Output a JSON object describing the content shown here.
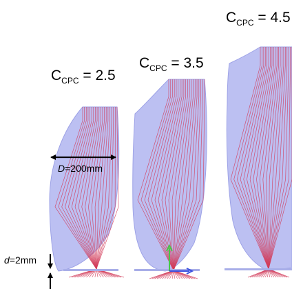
{
  "panels": [
    {
      "id": "cpc-2-5",
      "c_label": "C",
      "c_sub": "CPC",
      "c_value": "= 2.5"
    },
    {
      "id": "cpc-3-5",
      "c_label": "C",
      "c_sub": "CPC",
      "c_value": "= 3.5"
    },
    {
      "id": "cpc-4-5",
      "c_label": "C",
      "c_sub": "CPC",
      "c_value": "= 4.5"
    }
  ],
  "dimensions": {
    "diameter": {
      "symbol": "D",
      "value": "=200mm"
    },
    "gap": {
      "symbol": "d",
      "value": "=2mm"
    }
  },
  "colors": {
    "concentrator_fill": "#bcc0f2",
    "concentrator_edge": "#9da2e6",
    "ray": "#d23c5a",
    "absorber": "#a8aee8",
    "axis_green": "#48c648",
    "axis_blue": "#3a4fe0"
  }
}
